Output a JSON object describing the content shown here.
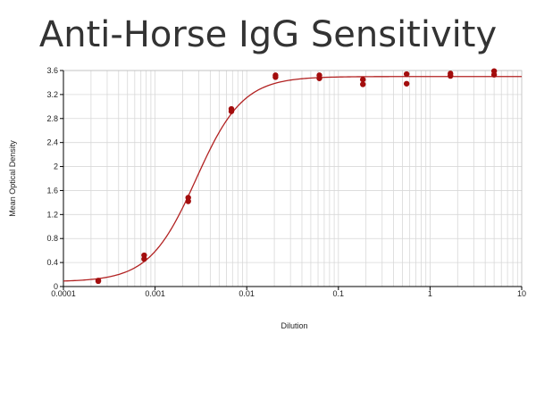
{
  "title": "Anti-Horse IgG Sensitivity",
  "chart_data": {
    "type": "scatter",
    "title": "Anti-Horse IgG Sensitivity",
    "xlabel": "Dilution",
    "ylabel": "Mean Optical Density",
    "x_scale": "log",
    "xlim": [
      0.0001,
      10
    ],
    "ylim": [
      0,
      3.6
    ],
    "x_ticks": [
      "0.0001",
      "0.001",
      "0.01",
      "0.1",
      "1",
      "10"
    ],
    "y_ticks": [
      "0",
      "0.4",
      "0.8",
      "1.2",
      "1.6",
      "2",
      "2.4",
      "2.8",
      "3.2",
      "3.6"
    ],
    "grid": true,
    "points": [
      {
        "x": 0.00024,
        "y": 0.1
      },
      {
        "x": 0.00024,
        "y": 0.09
      },
      {
        "x": 0.00076,
        "y": 0.52
      },
      {
        "x": 0.00076,
        "y": 0.46
      },
      {
        "x": 0.0023,
        "y": 1.48
      },
      {
        "x": 0.0023,
        "y": 1.42
      },
      {
        "x": 0.0068,
        "y": 2.96
      },
      {
        "x": 0.0068,
        "y": 2.92
      },
      {
        "x": 0.0206,
        "y": 3.52
      },
      {
        "x": 0.0206,
        "y": 3.49
      },
      {
        "x": 0.062,
        "y": 3.52
      },
      {
        "x": 0.062,
        "y": 3.47
      },
      {
        "x": 0.185,
        "y": 3.45
      },
      {
        "x": 0.185,
        "y": 3.37
      },
      {
        "x": 0.555,
        "y": 3.54
      },
      {
        "x": 0.555,
        "y": 3.38
      },
      {
        "x": 1.67,
        "y": 3.55
      },
      {
        "x": 1.67,
        "y": 3.51
      },
      {
        "x": 5.0,
        "y": 3.59
      },
      {
        "x": 5.0,
        "y": 3.53
      }
    ],
    "fit_curve": {
      "model": "4PL",
      "bottom": 0.08,
      "top": 3.5,
      "ec50": 0.0028,
      "hill": 1.7
    },
    "colors": {
      "marker": "#a30d0d",
      "curve": "#b22222",
      "grid": "#d8d8d8",
      "axis": "#000000"
    }
  }
}
